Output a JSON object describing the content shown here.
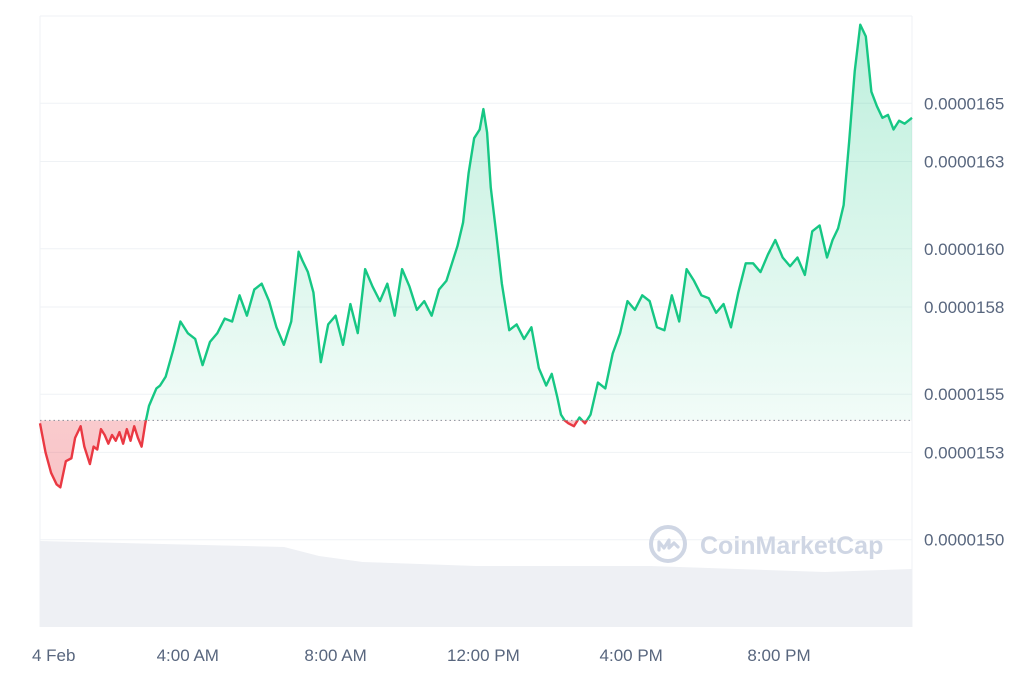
{
  "chart_data": {
    "type": "line",
    "title": "",
    "xlabel": "",
    "ylabel": "",
    "x_tick_labels": [
      "4 Feb",
      "4:00 AM",
      "8:00 AM",
      "12:00 PM",
      "4:00 PM",
      "8:00 PM"
    ],
    "x_tick_hours": [
      0,
      4,
      8,
      12,
      16,
      20
    ],
    "x_range_hours": [
      0,
      23.6
    ],
    "y_tick_labels": [
      "0.0000165",
      "0.0000163",
      "0.0000160",
      "0.0000158",
      "0.0000155",
      "0.0000153",
      "0.0000150"
    ],
    "y_tick_values": [
      1.65e-05,
      1.63e-05,
      1.6e-05,
      1.58e-05,
      1.55e-05,
      1.53e-05,
      1.5e-05
    ],
    "ylim": [
      1.47e-05,
      1.68e-05
    ],
    "baseline": 1.541e-05,
    "grid": "horizontal",
    "colors": {
      "up": "#16c784",
      "down": "#ea3943",
      "grid": "#eff2f5",
      "axis_text": "#58667e",
      "volume": "#eef0f4"
    },
    "series": [
      {
        "x": [
          0.0,
          0.15,
          0.3,
          0.45,
          0.55,
          0.7,
          0.85,
          0.95,
          1.1,
          1.2,
          1.35,
          1.45,
          1.55,
          1.65,
          1.75,
          1.85,
          1.95,
          2.05,
          2.15,
          2.25,
          2.35,
          2.45,
          2.55,
          2.65,
          2.75,
          2.85,
          2.95,
          3.05,
          3.15,
          3.25,
          3.4,
          3.6,
          3.8,
          4.0,
          4.2,
          4.4,
          4.6,
          4.8,
          5.0,
          5.2,
          5.4,
          5.6,
          5.8,
          6.0,
          6.2,
          6.4,
          6.6,
          6.8,
          7.0,
          7.1,
          7.25,
          7.4,
          7.6,
          7.8,
          8.0,
          8.2,
          8.4,
          8.6,
          8.8,
          9.0,
          9.2,
          9.4,
          9.6,
          9.8,
          10.0,
          10.2,
          10.4,
          10.6,
          10.8,
          11.0,
          11.15,
          11.3,
          11.45,
          11.6,
          11.75,
          11.9,
          12.0,
          12.1,
          12.2,
          12.35,
          12.5,
          12.7,
          12.9,
          13.1,
          13.3,
          13.5,
          13.7,
          13.85,
          14.0,
          14.1,
          14.2,
          14.3,
          14.45,
          14.6,
          14.75,
          14.9,
          15.1,
          15.3,
          15.5,
          15.7,
          15.9,
          16.1,
          16.3,
          16.5,
          16.7,
          16.9,
          17.1,
          17.3,
          17.5,
          17.7,
          17.9,
          18.1,
          18.3,
          18.5,
          18.7,
          18.9,
          19.1,
          19.3,
          19.5,
          19.7,
          19.9,
          20.1,
          20.3,
          20.5,
          20.7,
          20.9,
          21.1,
          21.3,
          21.45,
          21.6,
          21.75,
          21.9,
          22.05,
          22.2,
          22.35,
          22.5,
          22.65,
          22.8,
          22.95,
          23.1,
          23.25,
          23.4,
          23.6
        ],
        "values": [
          1.54e-05,
          1.53e-05,
          1.523e-05,
          1.519e-05,
          1.518e-05,
          1.527e-05,
          1.528e-05,
          1.535e-05,
          1.539e-05,
          1.532e-05,
          1.526e-05,
          1.532e-05,
          1.531e-05,
          1.538e-05,
          1.536e-05,
          1.533e-05,
          1.536e-05,
          1.534e-05,
          1.537e-05,
          1.533e-05,
          1.538e-05,
          1.534e-05,
          1.539e-05,
          1.535e-05,
          1.532e-05,
          1.54e-05,
          1.546e-05,
          1.549e-05,
          1.552e-05,
          1.553e-05,
          1.556e-05,
          1.565e-05,
          1.575e-05,
          1.571e-05,
          1.569e-05,
          1.56e-05,
          1.568e-05,
          1.571e-05,
          1.576e-05,
          1.575e-05,
          1.584e-05,
          1.577e-05,
          1.586e-05,
          1.588e-05,
          1.582e-05,
          1.573e-05,
          1.567e-05,
          1.575e-05,
          1.599e-05,
          1.596e-05,
          1.592e-05,
          1.585e-05,
          1.561e-05,
          1.574e-05,
          1.577e-05,
          1.567e-05,
          1.581e-05,
          1.571e-05,
          1.593e-05,
          1.587e-05,
          1.582e-05,
          1.588e-05,
          1.577e-05,
          1.593e-05,
          1.587e-05,
          1.579e-05,
          1.582e-05,
          1.577e-05,
          1.586e-05,
          1.589e-05,
          1.595e-05,
          1.601e-05,
          1.609e-05,
          1.626e-05,
          1.638e-05,
          1.641e-05,
          1.648e-05,
          1.64e-05,
          1.621e-05,
          1.605e-05,
          1.588e-05,
          1.572e-05,
          1.574e-05,
          1.569e-05,
          1.573e-05,
          1.559e-05,
          1.553e-05,
          1.557e-05,
          1.549e-05,
          1.543e-05,
          1.541e-05,
          1.54e-05,
          1.539e-05,
          1.542e-05,
          1.54e-05,
          1.543e-05,
          1.554e-05,
          1.552e-05,
          1.564e-05,
          1.571e-05,
          1.582e-05,
          1.579e-05,
          1.584e-05,
          1.582e-05,
          1.573e-05,
          1.572e-05,
          1.584e-05,
          1.575e-05,
          1.593e-05,
          1.589e-05,
          1.584e-05,
          1.583e-05,
          1.578e-05,
          1.581e-05,
          1.573e-05,
          1.585e-05,
          1.595e-05,
          1.595e-05,
          1.592e-05,
          1.598e-05,
          1.603e-05,
          1.597e-05,
          1.594e-05,
          1.597e-05,
          1.591e-05,
          1.606e-05,
          1.608e-05,
          1.597e-05,
          1.603e-05,
          1.607e-05,
          1.615e-05,
          1.637e-05,
          1.661e-05,
          1.677e-05,
          1.673e-05,
          1.654e-05,
          1.649e-05,
          1.645e-05,
          1.646e-05,
          1.641e-05,
          1.644e-05,
          1.643e-05,
          1.645e-05
        ]
      }
    ]
  },
  "watermark": {
    "text": "CoinMarketCap",
    "icon": "coinmarketcap-logo-icon"
  }
}
